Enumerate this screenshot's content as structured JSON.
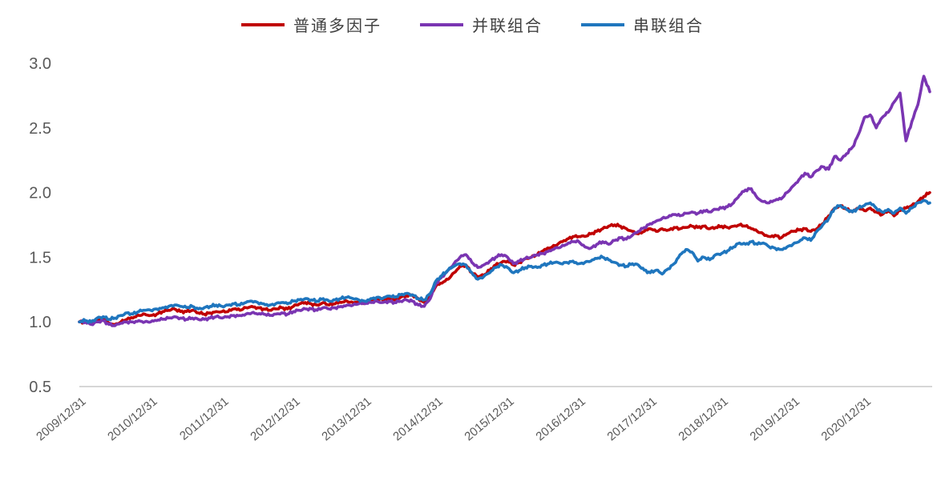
{
  "chart_data": {
    "type": "line",
    "title": "",
    "xlabel": "",
    "ylabel": "",
    "background_color": "#FFFFFF",
    "grid": false,
    "axis_color": "#D6D6D6",
    "text_color": "#595959",
    "legend_position": "top-center",
    "ylim": [
      0.5,
      3.0
    ],
    "y_tick_labels": [
      "3.0",
      "2.5",
      "2.0",
      "1.5",
      "1.0",
      "0.5"
    ],
    "x_tick_labels": [
      "2009/12/31",
      "2010/12/31",
      "2011/12/31",
      "2012/12/31",
      "2013/12/31",
      "2014/12/31",
      "2015/12/31",
      "2016/12/31",
      "2017/12/31",
      "2018/12/31",
      "2019/12/31",
      "2020/12/31"
    ],
    "x_start": "2009/12",
    "x_end": "2021/11",
    "x_interval": "monthly",
    "series": [
      {
        "name": "普通多因子",
        "color": "#C00000",
        "values": [
          1.0,
          1.0,
          0.99,
          1.02,
          1.03,
          0.99,
          0.98,
          1.0,
          1.02,
          1.03,
          1.05,
          1.06,
          1.05,
          1.06,
          1.08,
          1.09,
          1.1,
          1.08,
          1.08,
          1.09,
          1.07,
          1.06,
          1.07,
          1.08,
          1.08,
          1.08,
          1.1,
          1.09,
          1.11,
          1.12,
          1.11,
          1.1,
          1.09,
          1.1,
          1.11,
          1.1,
          1.12,
          1.14,
          1.15,
          1.14,
          1.13,
          1.15,
          1.13,
          1.14,
          1.15,
          1.16,
          1.15,
          1.16,
          1.15,
          1.17,
          1.18,
          1.17,
          1.18,
          1.17,
          1.19,
          1.2,
          1.21,
          1.18,
          1.15,
          1.2,
          1.28,
          1.3,
          1.33,
          1.38,
          1.43,
          1.44,
          1.38,
          1.35,
          1.36,
          1.4,
          1.44,
          1.46,
          1.47,
          1.44,
          1.46,
          1.49,
          1.5,
          1.52,
          1.55,
          1.57,
          1.59,
          1.62,
          1.64,
          1.66,
          1.66,
          1.66,
          1.68,
          1.7,
          1.72,
          1.74,
          1.75,
          1.74,
          1.72,
          1.7,
          1.68,
          1.7,
          1.72,
          1.7,
          1.72,
          1.71,
          1.73,
          1.72,
          1.73,
          1.74,
          1.73,
          1.74,
          1.72,
          1.73,
          1.74,
          1.73,
          1.74,
          1.75,
          1.74,
          1.72,
          1.7,
          1.68,
          1.66,
          1.67,
          1.65,
          1.68,
          1.7,
          1.71,
          1.72,
          1.7,
          1.72,
          1.76,
          1.82,
          1.88,
          1.9,
          1.87,
          1.85,
          1.88,
          1.86,
          1.88,
          1.85,
          1.83,
          1.86,
          1.82,
          1.86,
          1.88,
          1.9,
          1.93,
          1.97,
          2.0
        ]
      },
      {
        "name": "并联组合",
        "color": "#7A35B2",
        "values": [
          1.0,
          1.0,
          0.98,
          1.0,
          1.01,
          0.98,
          0.97,
          0.99,
          1.0,
          1.0,
          1.01,
          1.0,
          1.0,
          1.01,
          1.02,
          1.03,
          1.04,
          1.03,
          1.02,
          1.03,
          1.02,
          1.02,
          1.03,
          1.04,
          1.03,
          1.04,
          1.05,
          1.05,
          1.06,
          1.07,
          1.06,
          1.06,
          1.05,
          1.06,
          1.07,
          1.06,
          1.08,
          1.09,
          1.1,
          1.1,
          1.09,
          1.11,
          1.1,
          1.11,
          1.12,
          1.13,
          1.13,
          1.14,
          1.14,
          1.15,
          1.16,
          1.15,
          1.16,
          1.15,
          1.16,
          1.17,
          1.16,
          1.13,
          1.12,
          1.18,
          1.3,
          1.35,
          1.4,
          1.45,
          1.5,
          1.52,
          1.46,
          1.42,
          1.44,
          1.47,
          1.5,
          1.52,
          1.5,
          1.45,
          1.47,
          1.49,
          1.5,
          1.52,
          1.53,
          1.55,
          1.57,
          1.58,
          1.6,
          1.62,
          1.62,
          1.58,
          1.57,
          1.6,
          1.62,
          1.6,
          1.63,
          1.65,
          1.64,
          1.67,
          1.7,
          1.73,
          1.76,
          1.78,
          1.8,
          1.81,
          1.83,
          1.82,
          1.84,
          1.85,
          1.84,
          1.86,
          1.85,
          1.87,
          1.88,
          1.89,
          1.92,
          1.98,
          2.02,
          2.03,
          1.96,
          1.93,
          1.92,
          1.94,
          1.95,
          2.0,
          2.05,
          2.1,
          2.15,
          2.12,
          2.17,
          2.2,
          2.18,
          2.28,
          2.25,
          2.3,
          2.35,
          2.45,
          2.58,
          2.6,
          2.5,
          2.58,
          2.62,
          2.7,
          2.77,
          2.4,
          2.55,
          2.68,
          2.9,
          2.78
        ]
      },
      {
        "name": "串联组合",
        "color": "#1F76BE",
        "values": [
          1.0,
          1.01,
          1.0,
          1.03,
          1.04,
          1.02,
          1.03,
          1.05,
          1.07,
          1.06,
          1.08,
          1.09,
          1.09,
          1.1,
          1.11,
          1.12,
          1.13,
          1.12,
          1.11,
          1.12,
          1.1,
          1.11,
          1.12,
          1.13,
          1.12,
          1.13,
          1.14,
          1.13,
          1.15,
          1.16,
          1.15,
          1.14,
          1.13,
          1.14,
          1.15,
          1.14,
          1.16,
          1.17,
          1.18,
          1.17,
          1.16,
          1.18,
          1.16,
          1.17,
          1.18,
          1.19,
          1.18,
          1.17,
          1.16,
          1.18,
          1.19,
          1.18,
          1.2,
          1.19,
          1.21,
          1.22,
          1.21,
          1.18,
          1.17,
          1.22,
          1.32,
          1.36,
          1.4,
          1.43,
          1.45,
          1.44,
          1.38,
          1.33,
          1.35,
          1.38,
          1.42,
          1.44,
          1.42,
          1.38,
          1.4,
          1.42,
          1.43,
          1.42,
          1.44,
          1.45,
          1.46,
          1.45,
          1.46,
          1.47,
          1.45,
          1.46,
          1.47,
          1.49,
          1.5,
          1.48,
          1.46,
          1.44,
          1.43,
          1.45,
          1.44,
          1.4,
          1.38,
          1.4,
          1.37,
          1.41,
          1.45,
          1.52,
          1.56,
          1.54,
          1.47,
          1.5,
          1.48,
          1.52,
          1.53,
          1.55,
          1.58,
          1.61,
          1.6,
          1.62,
          1.6,
          1.61,
          1.58,
          1.57,
          1.56,
          1.58,
          1.6,
          1.62,
          1.65,
          1.63,
          1.7,
          1.75,
          1.8,
          1.88,
          1.9,
          1.87,
          1.85,
          1.88,
          1.9,
          1.92,
          1.88,
          1.85,
          1.87,
          1.84,
          1.88,
          1.84,
          1.88,
          1.92,
          1.94,
          1.92
        ]
      }
    ]
  }
}
